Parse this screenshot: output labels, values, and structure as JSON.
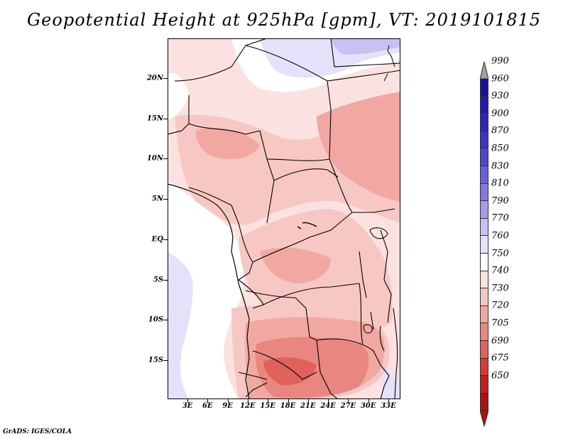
{
  "title": "Geopotential Height at 925hPa [gpm], VT: 2019101815",
  "footer": "GrADS: IGES/COLA",
  "chart_data": {
    "type": "heatmap",
    "title": "Geopotential Height at 925hPa [gpm], VT: 2019101815",
    "variable": "Geopotential Height",
    "level": "925hPa",
    "units": "gpm",
    "valid_time": "2019101815",
    "lat_ticks": [
      "20N",
      "15N",
      "10N",
      "5N",
      "EQ",
      "5S",
      "10S",
      "15S"
    ],
    "lon_ticks": [
      "3E",
      "6E",
      "9E",
      "12E",
      "15E",
      "18E",
      "21E",
      "24E",
      "27E",
      "30E",
      "33E"
    ],
    "colorbar_levels": [
      "990",
      "960",
      "930",
      "900",
      "870",
      "850",
      "830",
      "810",
      "790",
      "770",
      "760",
      "750",
      "740",
      "730",
      "720",
      "705",
      "690",
      "675",
      "650"
    ],
    "colorbar_colors": [
      "#1a0fa0",
      "#2517b0",
      "#3223c0",
      "#3f33cc",
      "#5045d4",
      "#6a5fdc",
      "#8478e4",
      "#a49ceb",
      "#c6c1f3",
      "#e4e2fa",
      "#ffffff",
      "#fbe2e0",
      "#f7c8c3",
      "#f2a8a2",
      "#e98680",
      "#e0625d",
      "#d43c38",
      "#c41f1e",
      "#b00f12"
    ],
    "colorbar_top_color": "#a0a0a0"
  }
}
